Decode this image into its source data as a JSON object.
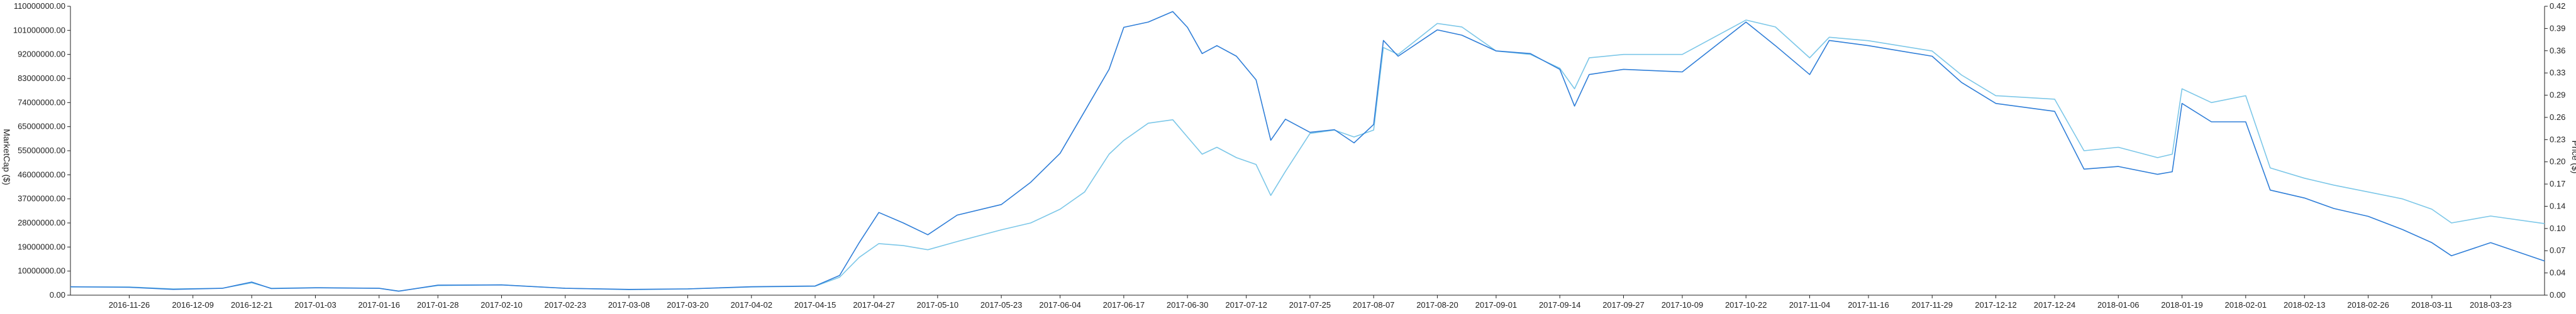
{
  "chart_data": {
    "type": "line",
    "title": "",
    "ylabel_left": "MarketCap ($)",
    "ylabel_right": "Price ($)",
    "grid": false,
    "legend": "none",
    "colors": {
      "marketcap": "#2f7ed8",
      "price": "#7cc7e8",
      "axis": "#222222"
    },
    "x_tick_labels": [
      "2016-11-26",
      "2016-12-09",
      "2016-12-21",
      "2017-01-03",
      "2017-01-16",
      "2017-01-28",
      "2017-02-10",
      "2017-02-23",
      "2017-03-08",
      "2017-03-20",
      "2017-04-02",
      "2017-04-15",
      "2017-04-27",
      "2017-05-10",
      "2017-05-23",
      "2017-06-04",
      "2017-06-17",
      "2017-06-30",
      "2017-07-12",
      "2017-07-25",
      "2017-08-07",
      "2017-08-20",
      "2017-09-01",
      "2017-09-14",
      "2017-09-27",
      "2017-10-09",
      "2017-10-22",
      "2017-11-04",
      "2017-11-16",
      "2017-11-29",
      "2017-12-12",
      "2017-12-24",
      "2018-01-06",
      "2018-01-19",
      "2018-02-01",
      "2018-02-13",
      "2018-02-26",
      "2018-03-11",
      "2018-03-23"
    ],
    "y_left": {
      "ticks": [
        "0.00",
        "10000000.00",
        "19000000.00",
        "28000000.00",
        "37000000.00",
        "46000000.00",
        "55000000.00",
        "65000000.00",
        "74000000.00",
        "83000000.00",
        "92000000.00",
        "101000000.00",
        "110000000.00"
      ],
      "range": [
        0,
        110000000
      ]
    },
    "y_right": {
      "ticks": [
        "0.00",
        "0.04",
        "0.07",
        "0.10",
        "0.14",
        "0.17",
        "0.20",
        "0.23",
        "0.26",
        "0.29",
        "0.33",
        "0.36",
        "0.39",
        "0.42"
      ],
      "range": [
        0,
        0.42
      ]
    },
    "x_range": [
      "2016-11-14",
      "2018-04-03"
    ],
    "series": [
      {
        "key": "marketcap",
        "axis": "left",
        "points": [
          [
            "2016-11-14",
            3200000
          ],
          [
            "2016-11-26",
            3000000
          ],
          [
            "2016-12-05",
            2200000
          ],
          [
            "2016-12-15",
            2600000
          ],
          [
            "2016-12-21",
            5000000
          ],
          [
            "2016-12-25",
            2500000
          ],
          [
            "2017-01-03",
            2800000
          ],
          [
            "2017-01-16",
            2600000
          ],
          [
            "2017-01-20",
            1500000
          ],
          [
            "2017-01-28",
            3800000
          ],
          [
            "2017-02-10",
            3900000
          ],
          [
            "2017-02-23",
            2600000
          ],
          [
            "2017-03-08",
            2200000
          ],
          [
            "2017-03-20",
            2400000
          ],
          [
            "2017-04-02",
            3200000
          ],
          [
            "2017-04-15",
            3500000
          ],
          [
            "2017-04-20",
            7500000
          ],
          [
            "2017-04-24",
            20000000
          ],
          [
            "2017-04-28",
            31500000
          ],
          [
            "2017-05-03",
            27500000
          ],
          [
            "2017-05-08",
            23000000
          ],
          [
            "2017-05-14",
            30500000
          ],
          [
            "2017-05-23",
            34500000
          ],
          [
            "2017-05-29",
            43000000
          ],
          [
            "2017-06-04",
            54000000
          ],
          [
            "2017-06-09",
            70000000
          ],
          [
            "2017-06-14",
            86000000
          ],
          [
            "2017-06-17",
            102000000
          ],
          [
            "2017-06-22",
            104000000
          ],
          [
            "2017-06-27",
            108000000
          ],
          [
            "2017-06-30",
            102000000
          ],
          [
            "2017-07-03",
            92000000
          ],
          [
            "2017-07-06",
            95000000
          ],
          [
            "2017-07-10",
            91000000
          ],
          [
            "2017-07-14",
            82000000
          ],
          [
            "2017-07-17",
            59000000
          ],
          [
            "2017-07-20",
            67000000
          ],
          [
            "2017-07-25",
            62000000
          ],
          [
            "2017-07-30",
            63000000
          ],
          [
            "2017-08-03",
            58000000
          ],
          [
            "2017-08-07",
            65000000
          ],
          [
            "2017-08-09",
            97000000
          ],
          [
            "2017-08-12",
            91000000
          ],
          [
            "2017-08-20",
            101000000
          ],
          [
            "2017-08-25",
            99000000
          ],
          [
            "2017-09-01",
            93000000
          ],
          [
            "2017-09-08",
            92000000
          ],
          [
            "2017-09-14",
            86000000
          ],
          [
            "2017-09-17",
            72000000
          ],
          [
            "2017-09-20",
            84000000
          ],
          [
            "2017-09-27",
            86000000
          ],
          [
            "2017-10-09",
            85000000
          ],
          [
            "2017-10-22",
            104000000
          ],
          [
            "2017-10-28",
            95000000
          ],
          [
            "2017-11-04",
            84000000
          ],
          [
            "2017-11-08",
            97000000
          ],
          [
            "2017-11-16",
            95000000
          ],
          [
            "2017-11-29",
            91000000
          ],
          [
            "2017-12-05",
            81000000
          ],
          [
            "2017-12-12",
            73000000
          ],
          [
            "2017-12-24",
            70000000
          ],
          [
            "2017-12-30",
            48000000
          ],
          [
            "2018-01-06",
            49000000
          ],
          [
            "2018-01-14",
            46000000
          ],
          [
            "2018-01-17",
            47000000
          ],
          [
            "2018-01-19",
            73000000
          ],
          [
            "2018-01-25",
            66000000
          ],
          [
            "2018-02-01",
            66000000
          ],
          [
            "2018-02-06",
            40000000
          ],
          [
            "2018-02-13",
            37000000
          ],
          [
            "2018-02-19",
            33000000
          ],
          [
            "2018-02-26",
            30000000
          ],
          [
            "2018-03-05",
            25000000
          ],
          [
            "2018-03-11",
            20000000
          ],
          [
            "2018-03-15",
            15000000
          ],
          [
            "2018-03-23",
            20000000
          ],
          [
            "2018-04-03",
            13000000
          ]
        ]
      },
      {
        "key": "price",
        "axis": "right",
        "points": [
          [
            "2016-11-14",
            0.012
          ],
          [
            "2016-11-26",
            0.012
          ],
          [
            "2016-12-05",
            0.009
          ],
          [
            "2016-12-15",
            0.01
          ],
          [
            "2016-12-21",
            0.018
          ],
          [
            "2016-12-25",
            0.01
          ],
          [
            "2017-01-03",
            0.011
          ],
          [
            "2017-01-16",
            0.01
          ],
          [
            "2017-01-20",
            0.006
          ],
          [
            "2017-01-28",
            0.014
          ],
          [
            "2017-02-10",
            0.015
          ],
          [
            "2017-02-23",
            0.01
          ],
          [
            "2017-03-08",
            0.008
          ],
          [
            "2017-03-20",
            0.009
          ],
          [
            "2017-04-02",
            0.012
          ],
          [
            "2017-04-15",
            0.013
          ],
          [
            "2017-04-20",
            0.026
          ],
          [
            "2017-04-24",
            0.055
          ],
          [
            "2017-04-28",
            0.075
          ],
          [
            "2017-05-03",
            0.072
          ],
          [
            "2017-05-08",
            0.066
          ],
          [
            "2017-05-14",
            0.078
          ],
          [
            "2017-05-23",
            0.095
          ],
          [
            "2017-05-29",
            0.105
          ],
          [
            "2017-06-04",
            0.125
          ],
          [
            "2017-06-09",
            0.15
          ],
          [
            "2017-06-14",
            0.205
          ],
          [
            "2017-06-17",
            0.225
          ],
          [
            "2017-06-22",
            0.25
          ],
          [
            "2017-06-27",
            0.255
          ],
          [
            "2017-06-30",
            0.23
          ],
          [
            "2017-07-03",
            0.205
          ],
          [
            "2017-07-06",
            0.215
          ],
          [
            "2017-07-10",
            0.2
          ],
          [
            "2017-07-14",
            0.19
          ],
          [
            "2017-07-17",
            0.145
          ],
          [
            "2017-07-20",
            0.18
          ],
          [
            "2017-07-25",
            0.235
          ],
          [
            "2017-07-30",
            0.24
          ],
          [
            "2017-08-03",
            0.23
          ],
          [
            "2017-08-07",
            0.24
          ],
          [
            "2017-08-09",
            0.36
          ],
          [
            "2017-08-12",
            0.35
          ],
          [
            "2017-08-20",
            0.395
          ],
          [
            "2017-08-25",
            0.39
          ],
          [
            "2017-09-01",
            0.355
          ],
          [
            "2017-09-08",
            0.35
          ],
          [
            "2017-09-14",
            0.33
          ],
          [
            "2017-09-17",
            0.3
          ],
          [
            "2017-09-20",
            0.345
          ],
          [
            "2017-09-27",
            0.35
          ],
          [
            "2017-10-09",
            0.35
          ],
          [
            "2017-10-22",
            0.4
          ],
          [
            "2017-10-28",
            0.39
          ],
          [
            "2017-11-04",
            0.345
          ],
          [
            "2017-11-08",
            0.375
          ],
          [
            "2017-11-16",
            0.37
          ],
          [
            "2017-11-29",
            0.355
          ],
          [
            "2017-12-05",
            0.32
          ],
          [
            "2017-12-12",
            0.29
          ],
          [
            "2017-12-24",
            0.285
          ],
          [
            "2017-12-30",
            0.21
          ],
          [
            "2018-01-06",
            0.215
          ],
          [
            "2018-01-14",
            0.2
          ],
          [
            "2018-01-17",
            0.205
          ],
          [
            "2018-01-19",
            0.3
          ],
          [
            "2018-01-25",
            0.28
          ],
          [
            "2018-02-01",
            0.29
          ],
          [
            "2018-02-06",
            0.185
          ],
          [
            "2018-02-13",
            0.17
          ],
          [
            "2018-02-19",
            0.16
          ],
          [
            "2018-02-26",
            0.15
          ],
          [
            "2018-03-05",
            0.14
          ],
          [
            "2018-03-11",
            0.125
          ],
          [
            "2018-03-15",
            0.105
          ],
          [
            "2018-03-23",
            0.115
          ],
          [
            "2018-04-03",
            0.104
          ]
        ]
      }
    ]
  }
}
